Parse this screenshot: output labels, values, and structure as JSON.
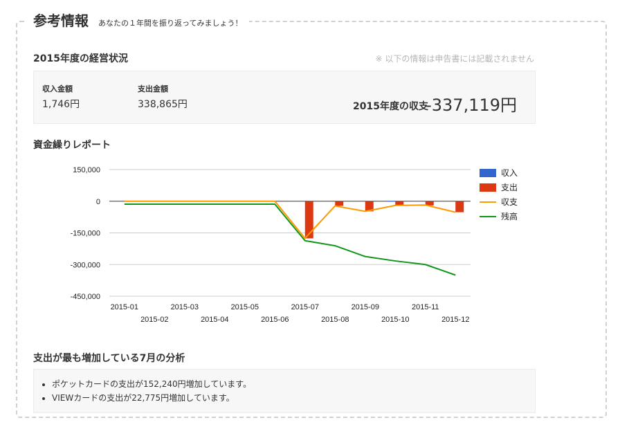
{
  "header": {
    "title": "参考情報",
    "subtitle": "あなたの１年間を振り返ってみましょう！"
  },
  "summary": {
    "heading": "2015年度の経営状況",
    "note": "※ 以下の情報は申告書には記載されません",
    "income_label": "収入金額",
    "income_value": "1,746円",
    "expense_label": "支出金額",
    "expense_value": "338,865円",
    "balance_label": "2015年度の収支",
    "balance_value": "-337,119円"
  },
  "report": {
    "heading": "資金繰りレポート"
  },
  "analysis": {
    "heading": "支出が最も増加している7月の分析",
    "items": [
      "ポケットカードの支出が152,240円増加しています。",
      "VIEWカードの支出が22,775円増加しています。"
    ]
  },
  "colors": {
    "income": "#3366cc",
    "expense": "#dc3912",
    "net": "#ff9900",
    "balance": "#109618"
  },
  "chart_data": {
    "type": "bar",
    "title": "",
    "xlabel": "",
    "ylabel": "",
    "categories": [
      "2015-01",
      "2015-02",
      "2015-03",
      "2015-04",
      "2015-05",
      "2015-06",
      "2015-07",
      "2015-08",
      "2015-09",
      "2015-10",
      "2015-11",
      "2015-12"
    ],
    "ylim": [
      -450000,
      150000
    ],
    "yticks": [
      150000,
      0,
      -150000,
      -300000,
      -450000
    ],
    "ytick_labels": [
      "150,000",
      "0",
      "-150,000",
      "-300,000",
      "-450,000"
    ],
    "grid": true,
    "legend_position": "right",
    "series": [
      {
        "name": "収入",
        "kind": "bar",
        "values": [
          0,
          0,
          0,
          0,
          0,
          0,
          0,
          0,
          0,
          1746,
          0,
          0
        ]
      },
      {
        "name": "支出",
        "kind": "bar",
        "values": [
          0,
          0,
          0,
          0,
          0,
          0,
          -176000,
          -22000,
          -48000,
          -22000,
          -20000,
          -52000
        ]
      },
      {
        "name": "収支",
        "kind": "line",
        "values": [
          0,
          0,
          0,
          0,
          0,
          0,
          -176000,
          -22000,
          -48000,
          -20000,
          -18000,
          -52000
        ]
      },
      {
        "name": "残高",
        "kind": "line",
        "values": [
          -14000,
          -14000,
          -14000,
          -14000,
          -14000,
          -14000,
          -187000,
          -211000,
          -262000,
          -283000,
          -300000,
          -350000
        ]
      }
    ]
  }
}
